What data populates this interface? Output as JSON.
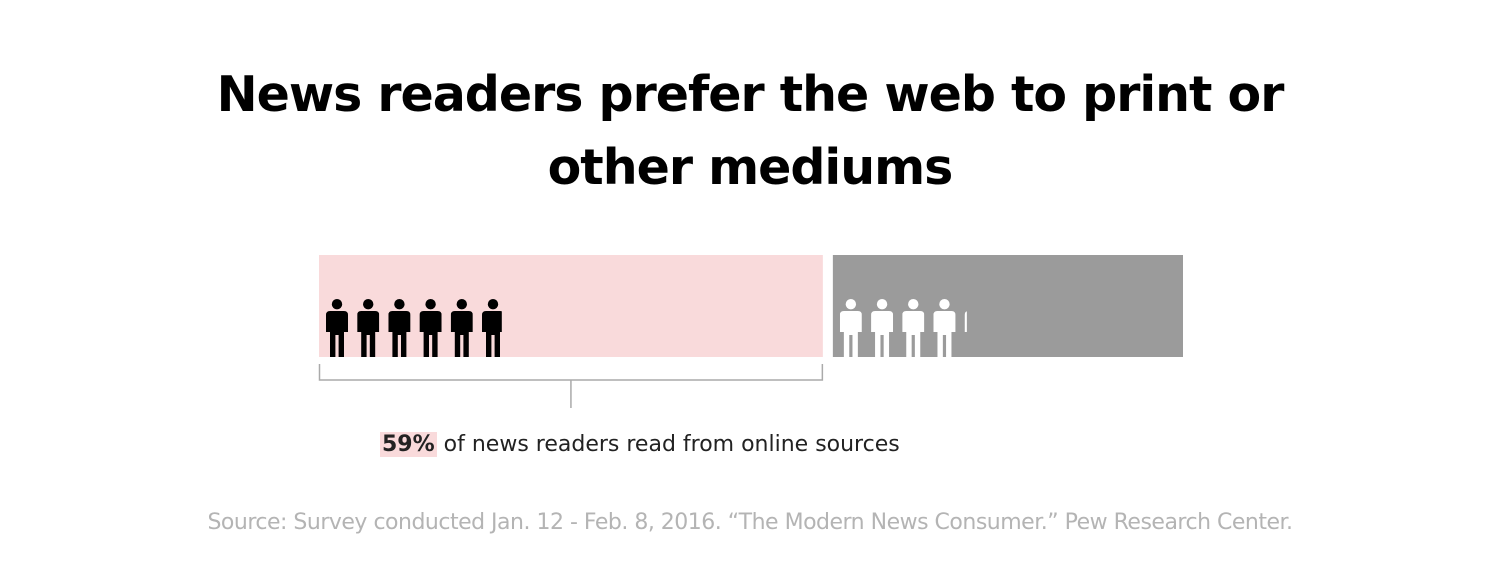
{
  "title_line1": "News readers prefer the web to print or",
  "title_line2": "other mediums",
  "chart_data": {
    "type": "bar",
    "orientation": "horizontal-stacked",
    "categories": [
      "online",
      "other"
    ],
    "values": [
      59,
      41
    ],
    "unit": "%",
    "people_icons": [
      5.9,
      4.1
    ],
    "colors": {
      "online_bar": "#f9dadb",
      "online_icon": "#000000",
      "other_bar": "#9b9b9b",
      "other_icon": "#ffffff",
      "bracket": "#aaaaaa"
    }
  },
  "caption": {
    "percent": "59%",
    "text": " of news readers read from online sources"
  },
  "source": "Source: Survey conducted Jan. 12 - Feb. 8, 2016. “The Modern News Consumer.” Pew Research Center."
}
